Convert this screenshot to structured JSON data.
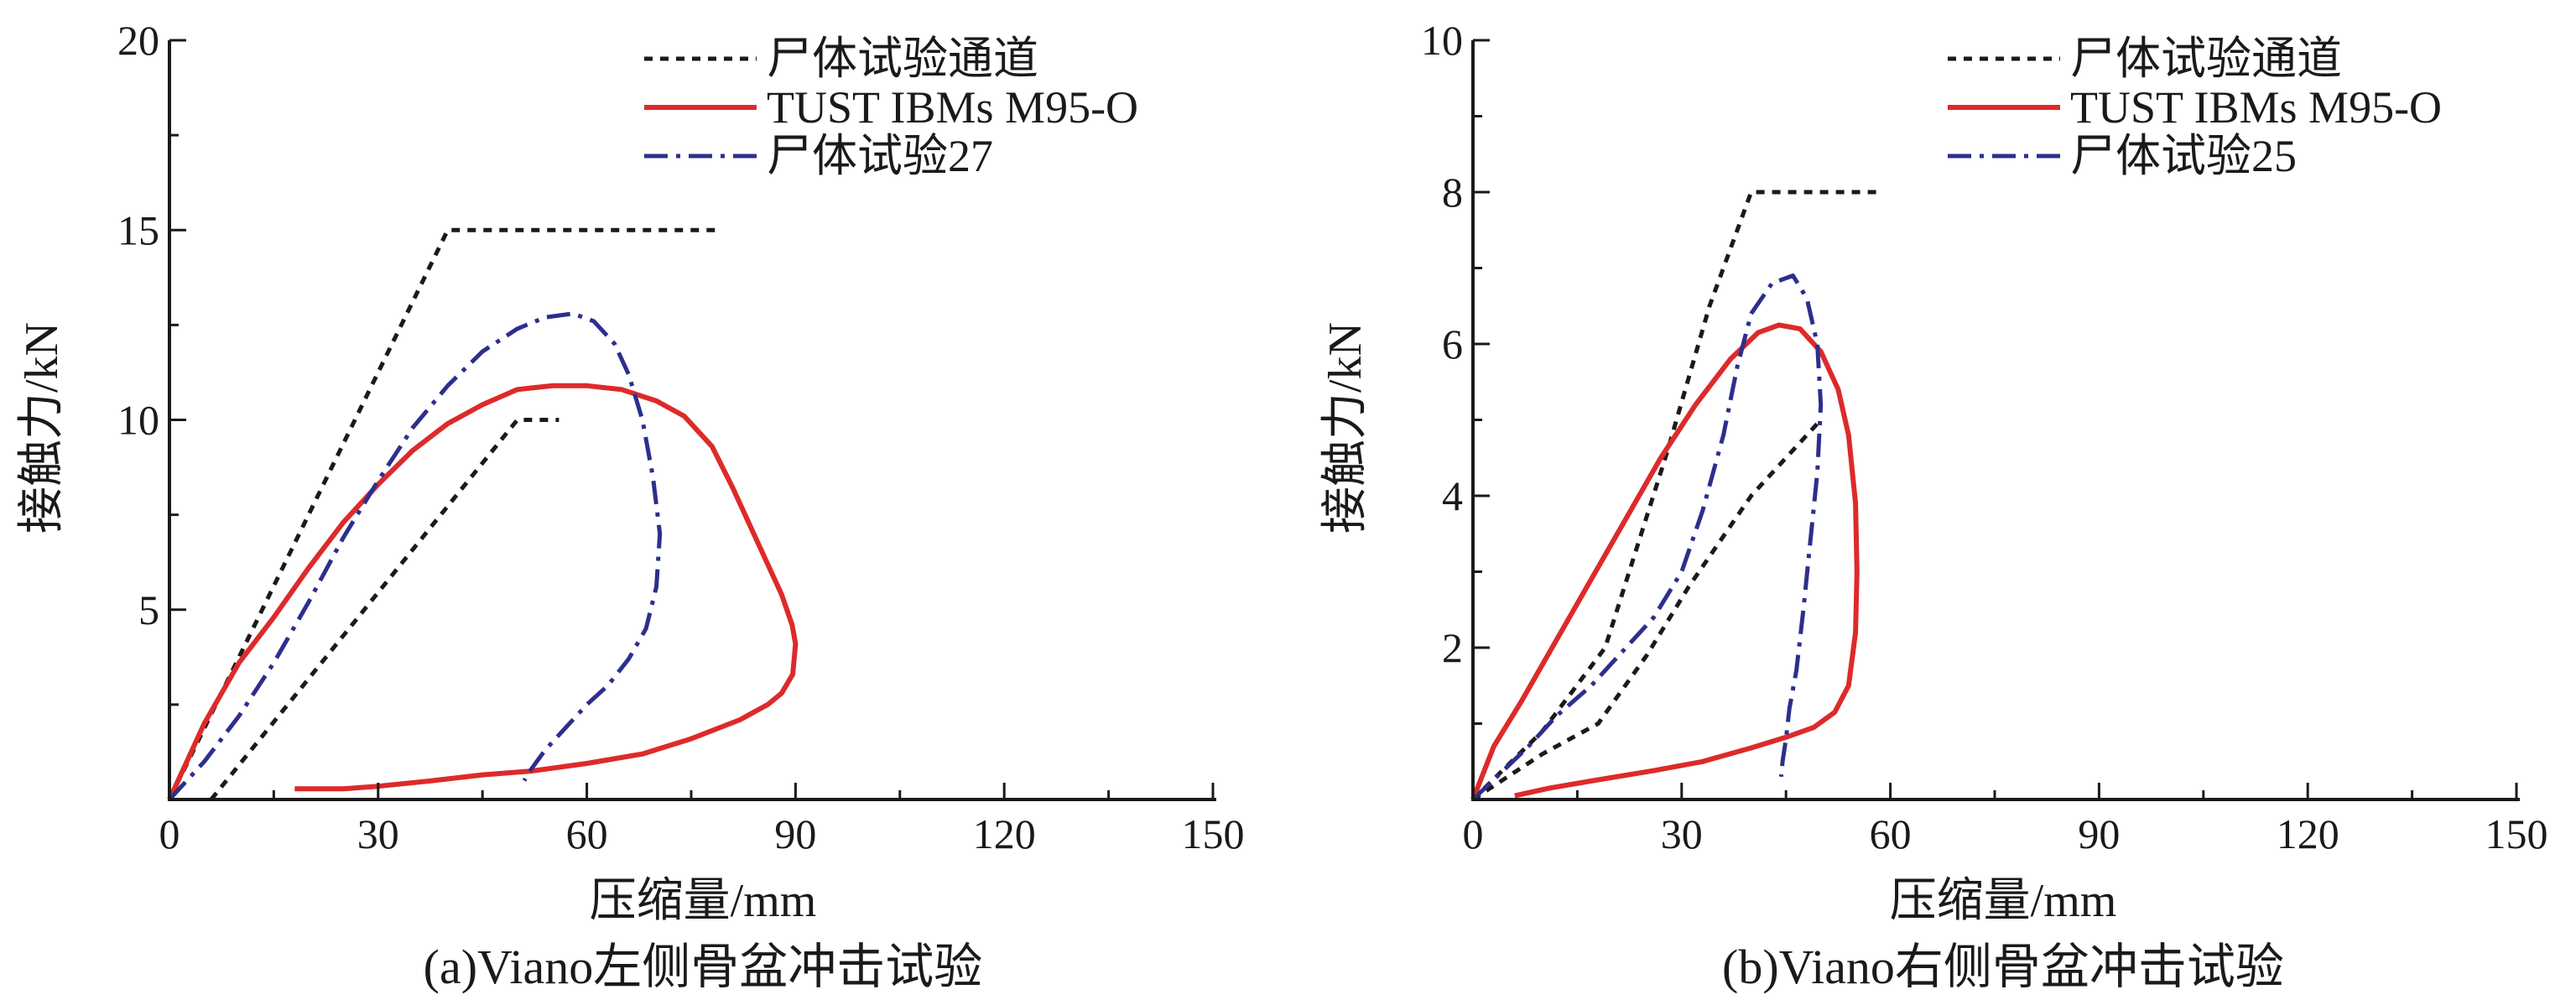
{
  "chart_data": [
    {
      "type": "line",
      "caption": "(a)Viano左侧骨盆冲击试验",
      "xlabel": "压缩量/mm",
      "ylabel": "接触力/kN",
      "xlim": [
        0,
        150
      ],
      "ylim": [
        0,
        20
      ],
      "xticks": [
        0,
        30,
        60,
        90,
        120,
        150
      ],
      "yticks": [
        5,
        10,
        15,
        20
      ],
      "ytick_labels": [
        "5",
        "10",
        "15",
        "20"
      ],
      "legend_position": "top-right",
      "series": [
        {
          "name": "尸体试验通道",
          "style": "dashed",
          "color": "#1a1a1a",
          "segments": [
            [
              [
                0,
                0
              ],
              [
                40,
                15
              ],
              [
                79,
                15
              ]
            ],
            [
              [
                6,
                0
              ],
              [
                28,
                5
              ],
              [
                50,
                10
              ],
              [
                56,
                10
              ]
            ]
          ]
        },
        {
          "name": "TUST IBMs M95-O",
          "style": "solid",
          "color": "#dd2a2a",
          "segments": [
            [
              [
                0,
                0
              ],
              [
                5,
                2
              ],
              [
                10,
                3.6
              ],
              [
                15,
                4.8
              ],
              [
                20,
                6.1
              ],
              [
                25,
                7.3
              ],
              [
                30,
                8.3
              ],
              [
                35,
                9.2
              ],
              [
                40,
                9.9
              ],
              [
                45,
                10.4
              ],
              [
                50,
                10.8
              ],
              [
                55,
                10.9
              ],
              [
                60,
                10.9
              ],
              [
                65,
                10.8
              ],
              [
                70,
                10.5
              ],
              [
                74,
                10.1
              ],
              [
                78,
                9.3
              ],
              [
                81,
                8.2
              ],
              [
                84,
                7
              ],
              [
                86,
                6.2
              ],
              [
                88,
                5.4
              ],
              [
                89.5,
                4.6
              ],
              [
                90,
                4.1
              ],
              [
                89.6,
                3.3
              ],
              [
                88,
                2.8
              ],
              [
                86,
                2.5
              ],
              [
                82,
                2.1
              ],
              [
                75,
                1.6
              ],
              [
                68,
                1.2
              ],
              [
                60,
                0.95
              ],
              [
                52,
                0.75
              ],
              [
                45,
                0.65
              ],
              [
                38,
                0.5
              ],
              [
                30,
                0.35
              ],
              [
                25,
                0.28
              ],
              [
                20,
                0.28
              ],
              [
                18,
                0.28
              ]
            ]
          ]
        },
        {
          "name": "尸体试验27",
          "style": "dashdot",
          "color": "#2c2f8c",
          "segments": [
            [
              [
                0,
                0
              ],
              [
                5,
                1
              ],
              [
                10,
                2.2
              ],
              [
                15,
                3.6
              ],
              [
                20,
                5.2
              ],
              [
                25,
                6.9
              ],
              [
                30,
                8.4
              ],
              [
                35,
                9.8
              ],
              [
                40,
                10.9
              ],
              [
                45,
                11.8
              ],
              [
                50,
                12.4
              ],
              [
                54,
                12.7
              ],
              [
                58,
                12.8
              ],
              [
                61,
                12.6
              ],
              [
                64,
                12
              ],
              [
                66,
                11.2
              ],
              [
                68,
                10
              ],
              [
                69.5,
                8.5
              ],
              [
                70.5,
                7
              ],
              [
                70,
                5.6
              ],
              [
                68.5,
                4.5
              ],
              [
                66,
                3.7
              ],
              [
                63,
                3
              ],
              [
                60,
                2.5
              ],
              [
                57,
                1.9
              ],
              [
                54,
                1.3
              ],
              [
                52,
                0.8
              ],
              [
                51,
                0.5
              ]
            ]
          ]
        }
      ]
    },
    {
      "type": "line",
      "caption": "(b)Viano右侧骨盆冲击试验",
      "xlabel": "压缩量/mm",
      "ylabel": "接触力/kN",
      "xlim": [
        0,
        150
      ],
      "ylim": [
        0,
        10
      ],
      "xticks": [
        0,
        30,
        60,
        90,
        120,
        150
      ],
      "yticks": [
        2,
        4,
        6,
        8,
        10
      ],
      "ytick_labels": [
        "2",
        "4",
        "6",
        "8",
        "10"
      ],
      "legend_position": "top-right",
      "series": [
        {
          "name": "尸体试验通道",
          "style": "dashed",
          "color": "#1a1a1a",
          "segments": [
            [
              [
                0,
                0
              ],
              [
                10,
                0.9
              ],
              [
                19,
                2
              ],
              [
                28,
                4.6
              ],
              [
                34,
                6.5
              ],
              [
                40,
                8
              ],
              [
                59,
                8
              ]
            ],
            [
              [
                0,
                0
              ],
              [
                10,
                0.6
              ],
              [
                18,
                1
              ],
              [
                25,
                1.9
              ],
              [
                31,
                2.8
              ],
              [
                40,
                4
              ],
              [
                50,
                5
              ]
            ]
          ]
        },
        {
          "name": "TUST IBMs M95-O",
          "style": "solid",
          "color": "#dd2a2a",
          "segments": [
            [
              [
                0,
                0
              ],
              [
                3,
                0.7
              ],
              [
                7,
                1.3
              ],
              [
                12,
                2.1
              ],
              [
                17,
                2.9
              ],
              [
                22,
                3.7
              ],
              [
                27,
                4.5
              ],
              [
                32,
                5.2
              ],
              [
                37,
                5.8
              ],
              [
                41,
                6.15
              ],
              [
                44,
                6.25
              ],
              [
                47,
                6.2
              ],
              [
                50,
                5.9
              ],
              [
                52.5,
                5.4
              ],
              [
                54,
                4.8
              ],
              [
                55,
                3.9
              ],
              [
                55.2,
                3
              ],
              [
                55,
                2.2
              ],
              [
                54,
                1.5
              ],
              [
                52,
                1.15
              ],
              [
                49,
                0.95
              ],
              [
                45,
                0.82
              ],
              [
                40,
                0.68
              ],
              [
                33,
                0.5
              ],
              [
                26,
                0.38
              ],
              [
                18,
                0.26
              ],
              [
                11,
                0.15
              ],
              [
                7,
                0.07
              ],
              [
                6,
                0.05
              ]
            ]
          ]
        },
        {
          "name": "尸体试验25",
          "style": "dashdot",
          "color": "#2c2f8c",
          "segments": [
            [
              [
                0,
                0
              ],
              [
                4,
                0.35
              ],
              [
                8,
                0.7
              ],
              [
                12,
                1.1
              ],
              [
                17,
                1.5
              ],
              [
                21,
                1.9
              ],
              [
                26,
                2.4
              ],
              [
                30,
                3
              ],
              [
                33,
                3.8
              ],
              [
                36,
                4.8
              ],
              [
                38,
                5.7
              ],
              [
                40,
                6.4
              ],
              [
                43,
                6.8
              ],
              [
                46,
                6.9
              ],
              [
                48,
                6.6
              ],
              [
                49.5,
                6
              ],
              [
                50,
                5.2
              ],
              [
                49.5,
                4.3
              ],
              [
                48.5,
                3.4
              ],
              [
                47.5,
                2.5
              ],
              [
                46.5,
                1.7
              ],
              [
                45.5,
                1.2
              ],
              [
                45,
                0.8
              ],
              [
                44.5,
                0.5
              ],
              [
                44.3,
                0.3
              ]
            ]
          ]
        }
      ]
    }
  ]
}
